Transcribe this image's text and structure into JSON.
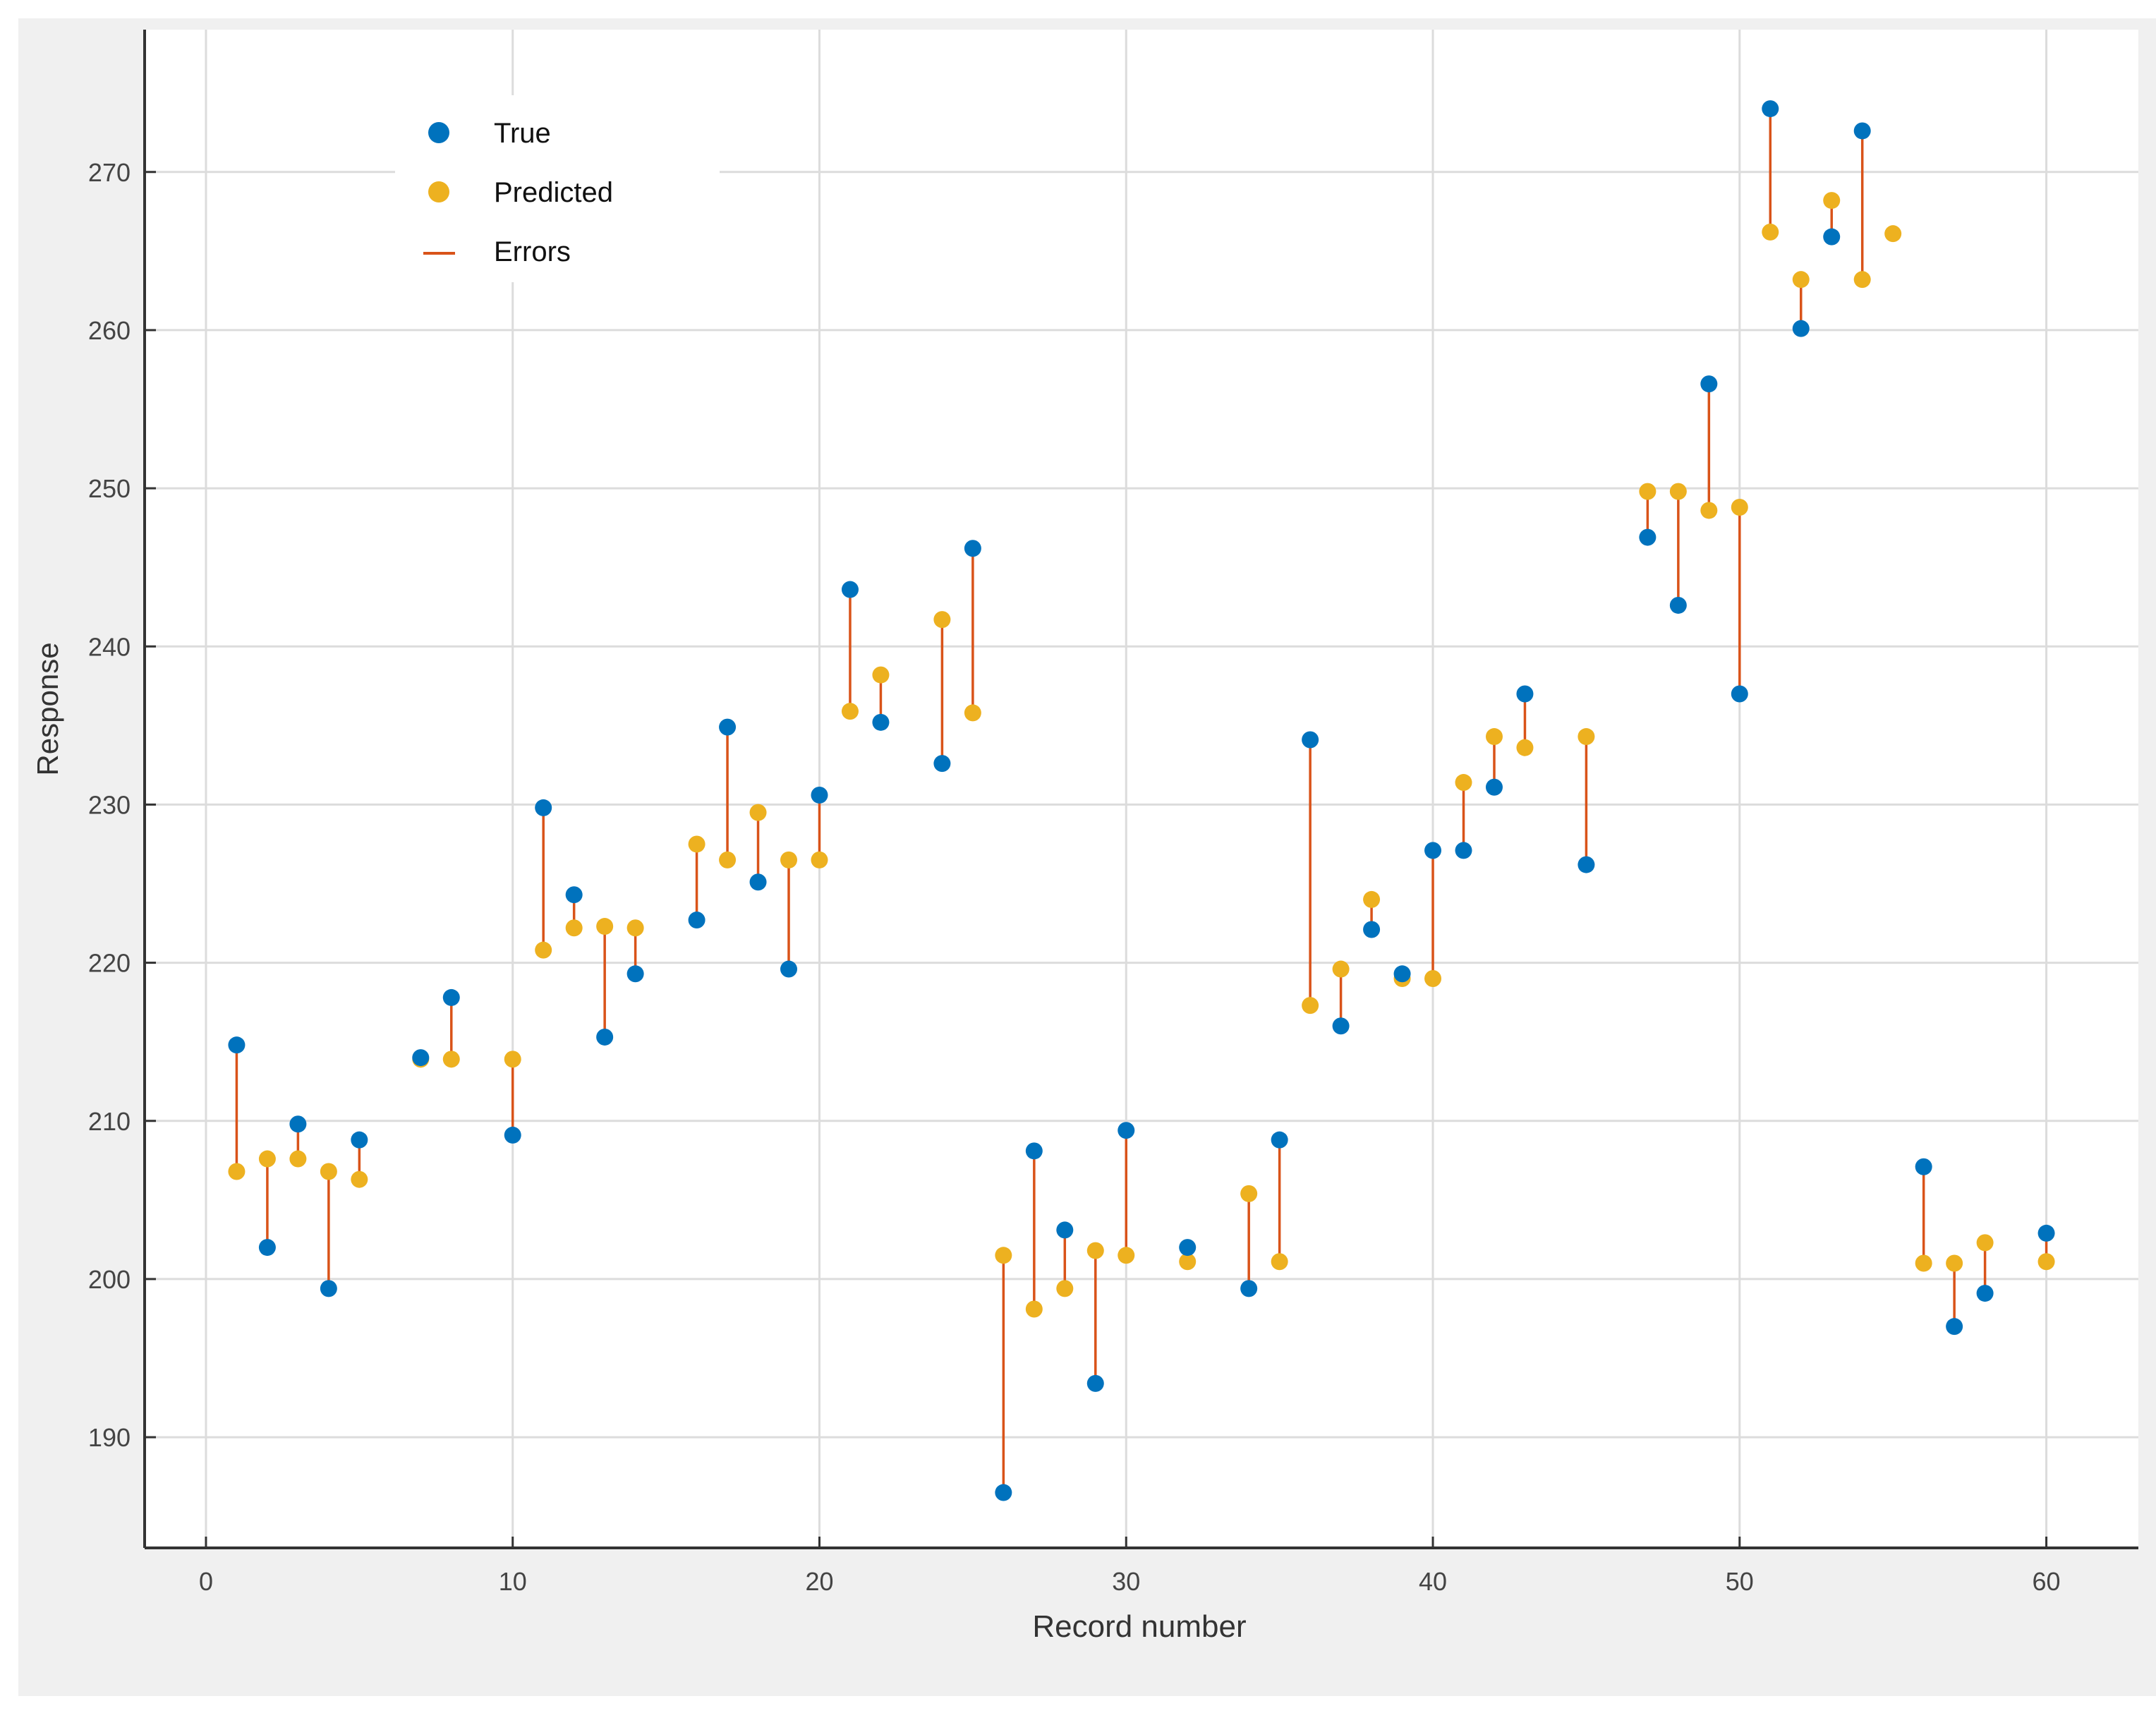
{
  "chart_data": {
    "type": "scatter",
    "title": "",
    "xlabel": "Record number",
    "ylabel": "Response",
    "xlim": [
      -2,
      63
    ],
    "ylim": [
      183,
      279
    ],
    "xticks": [
      0,
      10,
      20,
      30,
      40,
      50,
      60
    ],
    "yticks": [
      190,
      200,
      210,
      220,
      230,
      240,
      250,
      260,
      270
    ],
    "grid": true,
    "legend_position": "top-left",
    "legend": [
      {
        "key": "true",
        "label": "True",
        "color": "#0072BD",
        "marker": "dot"
      },
      {
        "key": "predicted",
        "label": "Predicted",
        "color": "#EDB120",
        "marker": "dot"
      },
      {
        "key": "errors",
        "label": "Errors",
        "color": "#D95319",
        "marker": "line"
      }
    ],
    "colors": {
      "true": "#0072BD",
      "predicted": "#EDB120",
      "errors": "#D95319"
    },
    "x": [
      1,
      2,
      3,
      4,
      5,
      7,
      8,
      10,
      11,
      12,
      13,
      14,
      16,
      17,
      18,
      19,
      20,
      21,
      22,
      24,
      25,
      26,
      27,
      28,
      29,
      30,
      32,
      34,
      35,
      36,
      37,
      38,
      39,
      40,
      41,
      42,
      43,
      45,
      47,
      48,
      49,
      50,
      51,
      52,
      53,
      54,
      55,
      56,
      57,
      58,
      60
    ],
    "series": [
      {
        "name": "True",
        "values": [
          214.8,
          202,
          209.8,
          199.4,
          208.8,
          214,
          217.8,
          209.1,
          229.8,
          224.3,
          215.3,
          219.3,
          222.7,
          234.9,
          225.1,
          219.6,
          230.6,
          243.6,
          235.2,
          232.6,
          246.2,
          186.5,
          208.1,
          203.1,
          193.4,
          209.4,
          202,
          199.4,
          208.8,
          234.1,
          216,
          222.1,
          219.3,
          227.1,
          227.1,
          231.1,
          237,
          226.2,
          246.9,
          242.6,
          256.6,
          237,
          274,
          260.1,
          265.9,
          272.6,
          null,
          207.1,
          197,
          199.1,
          202.9
        ]
      },
      {
        "name": "Predicted",
        "values": [
          206.8,
          207.6,
          207.6,
          206.8,
          206.3,
          213.9,
          213.9,
          213.9,
          220.8,
          222.2,
          222.3,
          222.2,
          227.5,
          226.5,
          229.5,
          226.5,
          226.5,
          235.9,
          238.2,
          241.7,
          235.8,
          201.5,
          198.1,
          199.4,
          201.8,
          201.5,
          201.1,
          205.4,
          201.1,
          217.3,
          219.6,
          224,
          219,
          219,
          231.4,
          234.3,
          233.6,
          234.3,
          249.8,
          249.8,
          248.6,
          248.8,
          266.2,
          263.2,
          268.2,
          263.2,
          266.1,
          201,
          201,
          202.3,
          201.1
        ]
      }
    ]
  }
}
